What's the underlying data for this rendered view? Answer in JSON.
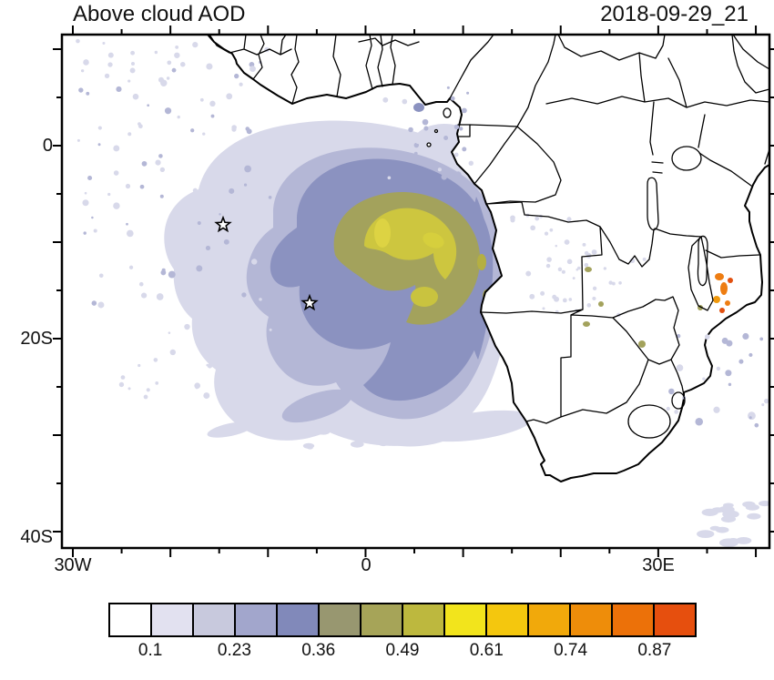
{
  "header": {
    "title": "Above cloud AOD",
    "timestamp": "2018-09-29_21"
  },
  "axes": {
    "y_labels": [
      "0",
      "20S",
      "40S"
    ],
    "x_labels": [
      "30W",
      "0",
      "30E"
    ]
  },
  "colorbar": {
    "tick_labels": [
      "0.1",
      "0.23",
      "0.36",
      "0.49",
      "0.61",
      "0.74",
      "0.87"
    ],
    "colors": [
      "#ffffff",
      "#e2e1f0",
      "#c8c9dd",
      "#a2a6cc",
      "#8189ba",
      "#989770",
      "#a6a458",
      "#bdb83e",
      "#f2e41c",
      "#f4c70e",
      "#f1a90b",
      "#ee8d0a",
      "#ec7109",
      "#e64f0e"
    ]
  },
  "map": {
    "variable": "Above cloud AOD",
    "markers": [
      {
        "symbol": "star"
      },
      {
        "symbol": "star"
      }
    ],
    "field_colors": {
      "light": "#d8d9ea",
      "medium": "#b4b7d6",
      "core": "#8b92c0",
      "olive": "#a3a25c",
      "yellow": "#cdc63f",
      "bright_yellow": "#ddd343",
      "orange": "#ee7d12",
      "red_orange": "#e2500f"
    }
  }
}
